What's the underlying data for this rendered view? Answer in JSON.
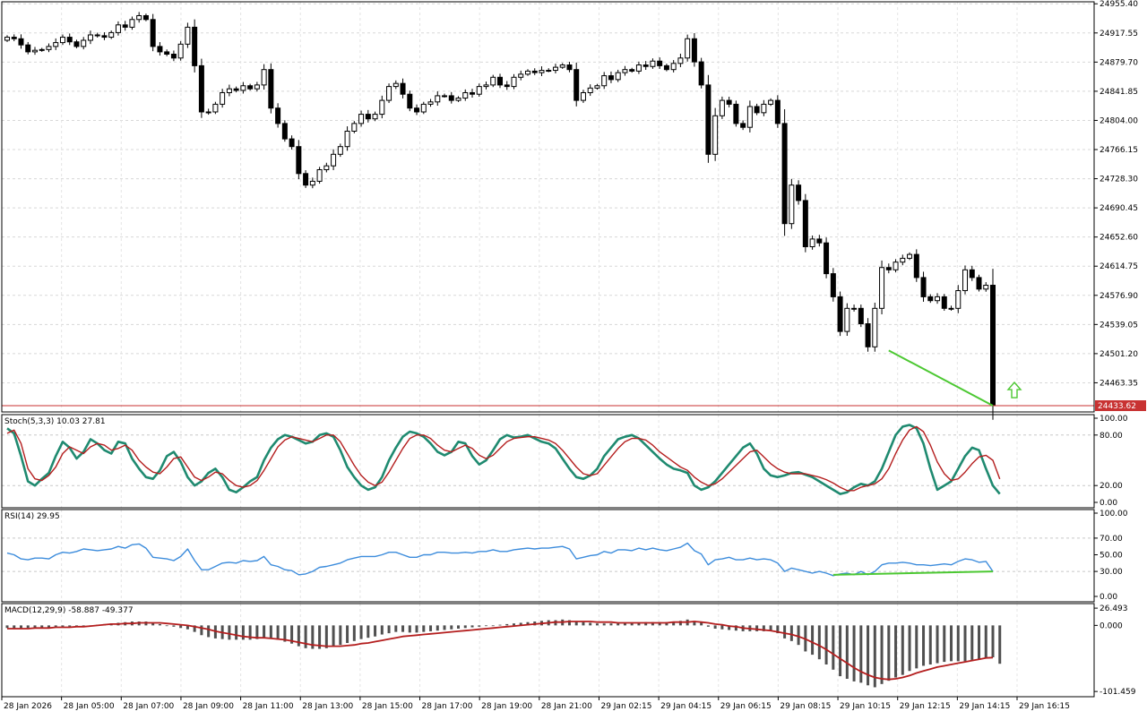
{
  "chart_data": [
    {
      "type": "candlestick",
      "pane": "price",
      "current_price": 24433.62,
      "current_price_label": "24433.62",
      "current_price_color": "#c83232",
      "ylim": [
        24425.5,
        24958
      ],
      "y_ticks": [
        "24955.40",
        "24917.55",
        "24879.70",
        "24841.85",
        "24804.00",
        "24766.15",
        "24728.30",
        "24690.45",
        "24652.60",
        "24614.75",
        "24576.90",
        "24539.05",
        "24501.20",
        "24463.35"
      ],
      "x_ticks": [
        "28 Jan 2026",
        "28 Jan 05:00",
        "28 Jan 07:00",
        "28 Jan 09:00",
        "28 Jan 11:00",
        "28 Jan 13:00",
        "28 Jan 15:00",
        "28 Jan 17:00",
        "28 Jan 19:00",
        "28 Jan 21:00",
        "29 Jan 02:15",
        "29 Jan 04:15",
        "29 Jan 06:15",
        "29 Jan 08:15",
        "29 Jan 10:15",
        "29 Jan 12:15",
        "29 Jan 14:15",
        "29 Jan 16:15"
      ],
      "closes": [
        24912,
        24910,
        24902,
        24893,
        24895,
        24896,
        24900,
        24905,
        24912,
        24906,
        24900,
        24908,
        24915,
        24914,
        24912,
        24918,
        24928,
        24925,
        24935,
        24940,
        24935,
        24900,
        24893,
        24890,
        24885,
        24903,
        24925,
        24875,
        24815,
        24815,
        24825,
        24840,
        24845,
        24843,
        24849,
        24845,
        24850,
        24870,
        24820,
        24800,
        24780,
        24770,
        24735,
        24720,
        24725,
        24740,
        24745,
        24760,
        24770,
        24790,
        24800,
        24812,
        24806,
        24812,
        24830,
        24848,
        24852,
        24838,
        24820,
        24815,
        24825,
        24828,
        24836,
        24836,
        24830,
        24833,
        24840,
        24838,
        24848,
        24850,
        24860,
        24850,
        24848,
        24860,
        24864,
        24868,
        24866,
        24869,
        24869,
        24873,
        24876,
        24870,
        24830,
        24840,
        24846,
        24849,
        24862,
        24857,
        24866,
        24870,
        24868,
        24876,
        24874,
        24881,
        24875,
        24870,
        24878,
        24885,
        24910,
        24880,
        24850,
        24760,
        24810,
        24830,
        24825,
        24800,
        24795,
        24822,
        24814,
        24825,
        24830,
        24800,
        24670,
        24720,
        24700,
        24640,
        24650,
        24645,
        24605,
        24575,
        24530,
        24560,
        24560,
        24540,
        24510,
        24560,
        24613,
        24610,
        24620,
        24625,
        24630,
        24600,
        24575,
        24570,
        24575,
        24560,
        24560,
        24583,
        24610,
        24600,
        24585,
        24590,
        24433.62
      ],
      "hline_color": "#c83232",
      "trendline": {
        "from_close": 24510,
        "to_close": 24433.62,
        "color": "#4cc832"
      },
      "signal_arrow": {
        "direction": "up",
        "color": "#4cc832"
      }
    },
    {
      "type": "line",
      "pane": "stochastic",
      "title": "Stoch(5,3,3) 10.03 27.81",
      "ylim": [
        0,
        100
      ],
      "y_ticks": [
        "100.00",
        "80.00",
        "20.00",
        "0.00"
      ],
      "levels": [
        80,
        20
      ],
      "series": [
        {
          "color": "#1f8a70",
          "values": [
            88,
            82,
            55,
            25,
            20,
            28,
            35,
            55,
            72,
            65,
            52,
            60,
            75,
            70,
            62,
            58,
            72,
            70,
            52,
            40,
            30,
            28,
            38,
            55,
            60,
            48,
            30,
            20,
            25,
            35,
            40,
            30,
            15,
            12,
            18,
            25,
            30,
            50,
            65,
            75,
            80,
            78,
            74,
            70,
            72,
            80,
            82,
            78,
            62,
            42,
            30,
            20,
            15,
            18,
            30,
            50,
            65,
            78,
            84,
            82,
            78,
            70,
            60,
            56,
            60,
            72,
            70,
            55,
            45,
            50,
            62,
            75,
            80,
            77,
            78,
            80,
            76,
            72,
            70,
            64,
            52,
            40,
            30,
            28,
            32,
            40,
            55,
            65,
            75,
            78,
            80,
            76,
            68,
            60,
            52,
            45,
            40,
            38,
            35,
            20,
            15,
            18,
            25,
            35,
            45,
            55,
            65,
            70,
            58,
            40,
            32,
            30,
            32,
            35,
            36,
            33,
            30,
            25,
            20,
            15,
            10,
            12,
            18,
            22,
            20,
            25,
            40,
            60,
            80,
            90,
            92,
            88,
            70,
            40,
            15,
            20,
            25,
            40,
            55,
            65,
            62,
            40,
            20,
            10
          ]
        },
        {
          "color": "#b41e1e",
          "values": [
            82,
            86,
            70,
            40,
            28,
            26,
            32,
            42,
            58,
            66,
            62,
            58,
            66,
            70,
            68,
            62,
            64,
            68,
            62,
            50,
            42,
            36,
            34,
            42,
            52,
            54,
            42,
            30,
            26,
            30,
            36,
            34,
            26,
            20,
            18,
            20,
            26,
            38,
            52,
            66,
            74,
            78,
            76,
            74,
            72,
            76,
            80,
            80,
            72,
            58,
            44,
            32,
            24,
            20,
            24,
            36,
            50,
            64,
            76,
            80,
            80,
            76,
            68,
            62,
            60,
            64,
            68,
            64,
            56,
            52,
            56,
            64,
            72,
            76,
            77,
            78,
            78,
            76,
            74,
            70,
            62,
            52,
            42,
            34,
            32,
            34,
            44,
            54,
            64,
            72,
            76,
            76,
            74,
            68,
            60,
            54,
            48,
            42,
            38,
            30,
            24,
            20,
            22,
            28,
            36,
            44,
            52,
            60,
            62,
            54,
            46,
            40,
            36,
            34,
            34,
            34,
            32,
            30,
            27,
            23,
            18,
            14,
            14,
            18,
            20,
            22,
            28,
            40,
            58,
            74,
            86,
            90,
            84,
            68,
            48,
            34,
            26,
            28,
            36,
            46,
            54,
            56,
            50,
            27.81
          ]
        }
      ]
    },
    {
      "type": "line",
      "pane": "rsi",
      "title": "RSI(14) 29.95",
      "ylim": [
        0,
        100
      ],
      "y_ticks": [
        "100.00",
        "70.00",
        "50.00",
        "30.00",
        "0.00"
      ],
      "series": [
        {
          "color": "#3c8cdc",
          "values": [
            52,
            50,
            45,
            44,
            46,
            46,
            45,
            50,
            53,
            52,
            54,
            57,
            56,
            55,
            56,
            57,
            60,
            58,
            62,
            63,
            58,
            47,
            46,
            45,
            43,
            48,
            57,
            43,
            32,
            32,
            36,
            40,
            41,
            40,
            43,
            42,
            43,
            48,
            38,
            36,
            32,
            31,
            26,
            27,
            30,
            35,
            36,
            38,
            40,
            44,
            46,
            48,
            48,
            48,
            50,
            53,
            53,
            50,
            47,
            47,
            50,
            50,
            53,
            53,
            52,
            52,
            53,
            52,
            54,
            54,
            56,
            54,
            54,
            56,
            57,
            58,
            57,
            58,
            58,
            59,
            60,
            57,
            45,
            47,
            49,
            50,
            54,
            52,
            56,
            56,
            55,
            58,
            56,
            58,
            56,
            55,
            57,
            59,
            64,
            55,
            51,
            38,
            44,
            45,
            47,
            44,
            44,
            46,
            44,
            45,
            44,
            40,
            30,
            34,
            32,
            30,
            28,
            30,
            28,
            25,
            27,
            28,
            26,
            30,
            26,
            30,
            38,
            40,
            40,
            41,
            40,
            38,
            38,
            37,
            38,
            39,
            38,
            42,
            45,
            44,
            41,
            42,
            29.95
          ]
        }
      ],
      "trendline": {
        "from": 26,
        "to": 30,
        "color": "#4cc832"
      }
    },
    {
      "type": "bar",
      "pane": "macd",
      "title": "MACD(12,29,9) -58.887 -49.377",
      "ylim": [
        -104,
        28
      ],
      "y_ticks": [
        "26.493",
        "0.000",
        "-101.459"
      ],
      "histogram": {
        "color": "#505050",
        "values": [
          -4,
          -5,
          -5,
          -4,
          -4,
          -3,
          -3,
          -3,
          -2,
          -2,
          -2,
          -1,
          0,
          1,
          2,
          3,
          4,
          5,
          6,
          6,
          6,
          4,
          2,
          0,
          -2,
          -4,
          -6,
          -10,
          -15,
          -18,
          -20,
          -21,
          -22,
          -22,
          -22,
          -22,
          -21,
          -19,
          -20,
          -22,
          -25,
          -28,
          -32,
          -35,
          -36,
          -36,
          -35,
          -33,
          -30,
          -27,
          -24,
          -21,
          -19,
          -17,
          -14,
          -12,
          -10,
          -10,
          -11,
          -11,
          -10,
          -9,
          -8,
          -7,
          -6,
          -5,
          -4,
          -3,
          -2,
          -1,
          0,
          1,
          2,
          3,
          4,
          5,
          6,
          7,
          8,
          8,
          9,
          8,
          6,
          5,
          4,
          3,
          3,
          3,
          3,
          4,
          4,
          4,
          5,
          5,
          5,
          5,
          6,
          7,
          9,
          7,
          4,
          -2,
          -5,
          -6,
          -7,
          -8,
          -9,
          -9,
          -9,
          -9,
          -9,
          -12,
          -20,
          -24,
          -30,
          -40,
          -45,
          -52,
          -60,
          -68,
          -78,
          -82,
          -86,
          -88,
          -92,
          -95,
          -90,
          -85,
          -80,
          -76,
          -70,
          -66,
          -62,
          -60,
          -58,
          -56,
          -55,
          -55,
          -55,
          -53,
          -52,
          -50,
          -49,
          -58.887
        ]
      },
      "signal": {
        "color": "#b41e1e",
        "values": [
          -5,
          -5,
          -5,
          -5,
          -4,
          -4,
          -4,
          -3,
          -3,
          -3,
          -2,
          -2,
          -1,
          0,
          1,
          2,
          2,
          3,
          3,
          4,
          4,
          4,
          4,
          3,
          2,
          1,
          0,
          -2,
          -4,
          -6,
          -9,
          -11,
          -13,
          -15,
          -17,
          -18,
          -19,
          -19,
          -20,
          -21,
          -22,
          -24,
          -26,
          -28,
          -30,
          -31,
          -32,
          -32,
          -32,
          -31,
          -30,
          -28,
          -27,
          -25,
          -23,
          -21,
          -19,
          -17,
          -16,
          -15,
          -14,
          -13,
          -12,
          -11,
          -10,
          -9,
          -8,
          -7,
          -6,
          -5,
          -4,
          -3,
          -2,
          -1,
          0,
          1,
          2,
          3,
          4,
          5,
          5,
          6,
          6,
          6,
          6,
          5,
          5,
          5,
          4,
          4,
          4,
          4,
          4,
          4,
          4,
          4,
          5,
          5,
          5,
          6,
          5,
          4,
          2,
          1,
          -1,
          -2,
          -4,
          -5,
          -6,
          -7,
          -8,
          -10,
          -12,
          -14,
          -17,
          -21,
          -26,
          -31,
          -37,
          -44,
          -51,
          -58,
          -65,
          -71,
          -76,
          -80,
          -82,
          -83,
          -82,
          -80,
          -77,
          -73,
          -70,
          -67,
          -64,
          -62,
          -60,
          -58,
          -56,
          -54,
          -52,
          -50,
          -49.377
        ]
      }
    }
  ]
}
